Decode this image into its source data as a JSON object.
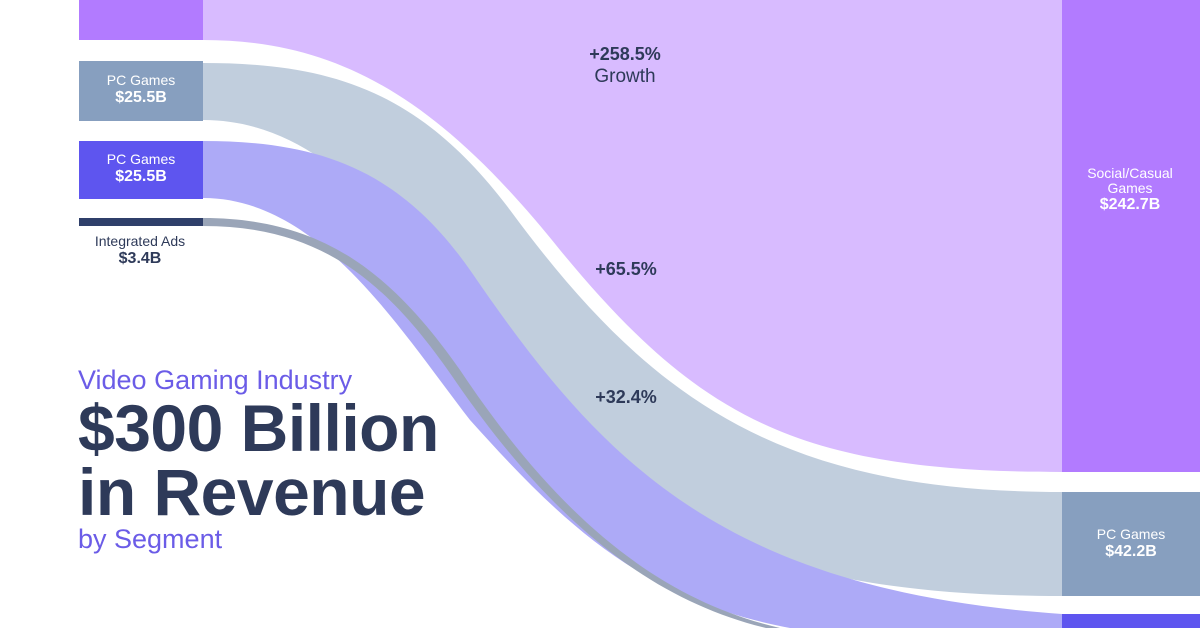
{
  "colors": {
    "social": "#d8bbff",
    "social_node": "#b27bff",
    "pc": "#c1cedd",
    "pc_node": "#879fbf",
    "mobile": "#adaaf7",
    "mobile_node": "#5e55ef",
    "ads": "#9aa5b8",
    "ads_node": "#2f3f6a",
    "text_dark": "#2e3a59",
    "text_accent": "#6b5ce7"
  },
  "left_nodes": [
    {
      "name": "",
      "value": ""
    },
    {
      "name": "PC Games",
      "value": "$25.5B"
    },
    {
      "name": "PC Games",
      "value": "$25.5B"
    },
    {
      "name": "Integrated Ads",
      "value": "$3.4B"
    }
  ],
  "right_nodes": [
    {
      "name": "Social/Casual Games",
      "value": "$242.7B"
    },
    {
      "name": "PC Games",
      "value": "$42.2B"
    }
  ],
  "growth_labels": [
    {
      "value": "+258.5%",
      "sub": "Growth"
    },
    {
      "value": "+65.5%"
    },
    {
      "value": "+32.4%"
    }
  ],
  "title": {
    "line1": "Video Gaming Industry",
    "line2": "$300 Billion",
    "line3": "in Revenue",
    "line4": "by Segment"
  }
}
